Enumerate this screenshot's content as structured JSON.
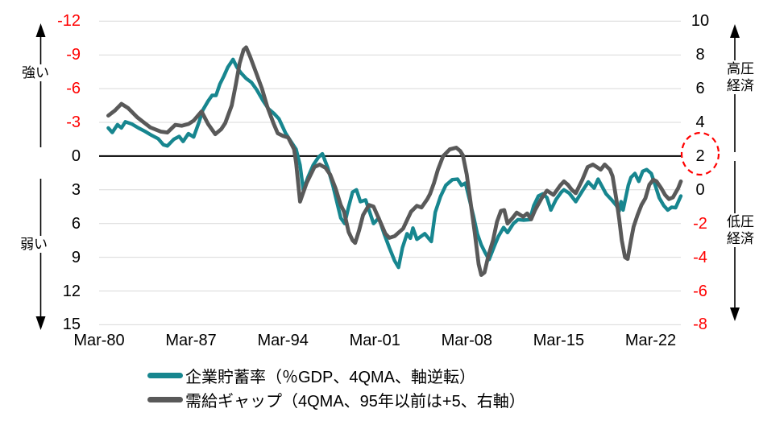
{
  "chart_data": {
    "type": "line",
    "title": "",
    "x_axis": {
      "tick_labels": [
        "Mar-80",
        "Mar-87",
        "Mar-94",
        "Mar-01",
        "Mar-08",
        "Mar-15",
        "Mar-22"
      ],
      "tick_years": [
        1980.2,
        1987.2,
        1994.2,
        2001.2,
        2008.2,
        2015.2,
        2022.2
      ],
      "range_years": [
        1980.2,
        2024.5
      ]
    },
    "left_axis": {
      "ticks": [
        -12,
        -9,
        -6,
        -3,
        0,
        3,
        6,
        9,
        12,
        15
      ],
      "range": [
        -12,
        15
      ],
      "inverted": true,
      "negative_color": "#FF0000",
      "base_color": "#000000"
    },
    "right_axis": {
      "ticks": [
        10,
        8,
        6,
        4,
        2,
        0,
        -2,
        -4,
        -6,
        -8
      ],
      "range": [
        10,
        -8
      ],
      "highlighted_tick": 2,
      "negative_color": "#FF0000",
      "base_color": "#000000"
    },
    "grid_color": "#D9D9D9",
    "zero_line_color": "#000000",
    "series": [
      {
        "name": "企業貯蓄率（％GDP、4QMA、軸逆転）",
        "color": "#17868F",
        "axis": "left",
        "stroke_width": 4.4,
        "points": [
          [
            1980.9,
            -2.5
          ],
          [
            1981.2,
            -2.1
          ],
          [
            1981.6,
            -2.8
          ],
          [
            1981.9,
            -2.5
          ],
          [
            1982.2,
            -3.05
          ],
          [
            1982.7,
            -2.85
          ],
          [
            1983.2,
            -2.5
          ],
          [
            1983.7,
            -2.2
          ],
          [
            1984.2,
            -1.85
          ],
          [
            1984.7,
            -1.55
          ],
          [
            1985.1,
            -1.0
          ],
          [
            1985.4,
            -0.9
          ],
          [
            1985.9,
            -1.5
          ],
          [
            1986.3,
            -1.75
          ],
          [
            1986.6,
            -1.3
          ],
          [
            1987.0,
            -2.0
          ],
          [
            1987.4,
            -1.7
          ],
          [
            1987.8,
            -3.0
          ],
          [
            1988.1,
            -4.1
          ],
          [
            1988.5,
            -4.9
          ],
          [
            1988.8,
            -5.4
          ],
          [
            1989.1,
            -5.4
          ],
          [
            1989.4,
            -6.4
          ],
          [
            1989.7,
            -7.1
          ],
          [
            1990.0,
            -7.9
          ],
          [
            1990.4,
            -8.6
          ],
          [
            1990.7,
            -7.9
          ],
          [
            1991.0,
            -7.4
          ],
          [
            1991.4,
            -6.9
          ],
          [
            1991.8,
            -6.55
          ],
          [
            1992.2,
            -5.9
          ],
          [
            1992.7,
            -4.9
          ],
          [
            1993.1,
            -4.2
          ],
          [
            1993.5,
            -3.8
          ],
          [
            1993.9,
            -3.3
          ],
          [
            1994.4,
            -2.05
          ],
          [
            1994.8,
            -1.3
          ],
          [
            1995.2,
            -0.6
          ],
          [
            1995.5,
            0.8
          ],
          [
            1995.75,
            3.0
          ],
          [
            1996.1,
            1.9
          ],
          [
            1996.5,
            0.8
          ],
          [
            1996.9,
            0.1
          ],
          [
            1997.2,
            -0.2
          ],
          [
            1997.6,
            1.0
          ],
          [
            1998.0,
            2.6
          ],
          [
            1998.6,
            5.5
          ],
          [
            1998.9,
            6.0
          ],
          [
            1999.2,
            4.5
          ],
          [
            1999.5,
            3.2
          ],
          [
            1999.8,
            3.0
          ],
          [
            2000.1,
            4.05
          ],
          [
            2000.5,
            3.9
          ],
          [
            2001.1,
            6.0
          ],
          [
            2001.5,
            5.5
          ],
          [
            2001.9,
            6.9
          ],
          [
            2002.3,
            8.15
          ],
          [
            2002.7,
            9.3
          ],
          [
            2003.0,
            9.9
          ],
          [
            2003.3,
            8.15
          ],
          [
            2003.65,
            6.9
          ],
          [
            2003.9,
            7.3
          ],
          [
            2004.1,
            6.4
          ],
          [
            2004.4,
            7.4
          ],
          [
            2005.0,
            6.9
          ],
          [
            2005.5,
            7.6
          ],
          [
            2005.8,
            5.0
          ],
          [
            2006.2,
            3.6
          ],
          [
            2006.6,
            2.6
          ],
          [
            2007.1,
            2.1
          ],
          [
            2007.5,
            2.05
          ],
          [
            2007.8,
            2.6
          ],
          [
            2008.1,
            2.4
          ],
          [
            2008.4,
            3.85
          ],
          [
            2008.7,
            5.3
          ],
          [
            2009.0,
            6.9
          ],
          [
            2009.3,
            7.9
          ],
          [
            2009.6,
            8.6
          ],
          [
            2009.9,
            9.2
          ],
          [
            2010.3,
            8.0
          ],
          [
            2010.6,
            7.15
          ],
          [
            2011.0,
            6.35
          ],
          [
            2011.3,
            6.8
          ],
          [
            2011.75,
            6.0
          ],
          [
            2012.1,
            5.65
          ],
          [
            2012.5,
            5.7
          ],
          [
            2013.0,
            5.65
          ],
          [
            2013.3,
            4.4
          ],
          [
            2013.65,
            3.55
          ],
          [
            2014.0,
            3.35
          ],
          [
            2014.3,
            3.7
          ],
          [
            2014.6,
            4.8
          ],
          [
            2015.0,
            3.85
          ],
          [
            2015.4,
            3.2
          ],
          [
            2015.6,
            3.0
          ],
          [
            2016.0,
            3.3
          ],
          [
            2016.5,
            4.05
          ],
          [
            2017.0,
            3.1
          ],
          [
            2017.45,
            2.3
          ],
          [
            2017.9,
            2.85
          ],
          [
            2018.2,
            2.05
          ],
          [
            2018.8,
            3.35
          ],
          [
            2019.2,
            3.85
          ],
          [
            2019.6,
            4.4
          ],
          [
            2019.8,
            4.9
          ],
          [
            2019.95,
            4.05
          ],
          [
            2020.1,
            4.8
          ],
          [
            2020.5,
            2.6
          ],
          [
            2020.7,
            1.9
          ],
          [
            2021.0,
            1.55
          ],
          [
            2021.3,
            2.25
          ],
          [
            2021.6,
            1.35
          ],
          [
            2021.9,
            1.2
          ],
          [
            2022.25,
            1.55
          ],
          [
            2022.55,
            2.6
          ],
          [
            2022.85,
            3.7
          ],
          [
            2023.2,
            4.4
          ],
          [
            2023.5,
            4.8
          ],
          [
            2023.8,
            4.55
          ],
          [
            2024.1,
            4.6
          ],
          [
            2024.5,
            3.55
          ]
        ]
      },
      {
        "name": "需給ギャップ（4QMA、95年以前は+5、右軸）",
        "color": "#595959",
        "axis": "right",
        "stroke_width": 4.8,
        "points": [
          [
            1980.9,
            4.4
          ],
          [
            1981.4,
            4.7
          ],
          [
            1981.9,
            5.1
          ],
          [
            1982.4,
            4.85
          ],
          [
            1983.1,
            4.3
          ],
          [
            1983.6,
            4.0
          ],
          [
            1984.1,
            3.7
          ],
          [
            1984.9,
            3.45
          ],
          [
            1985.4,
            3.4
          ],
          [
            1986.0,
            3.85
          ],
          [
            1986.5,
            3.8
          ],
          [
            1987.0,
            3.9
          ],
          [
            1987.4,
            4.1
          ],
          [
            1988.0,
            4.65
          ],
          [
            1988.5,
            3.9
          ],
          [
            1989.05,
            3.3
          ],
          [
            1989.5,
            3.6
          ],
          [
            1989.8,
            3.95
          ],
          [
            1990.3,
            5.0
          ],
          [
            1990.6,
            6.2
          ],
          [
            1990.9,
            7.5
          ],
          [
            1991.2,
            8.3
          ],
          [
            1991.4,
            8.45
          ],
          [
            1991.7,
            7.9
          ],
          [
            1992.2,
            6.85
          ],
          [
            1992.6,
            6.0
          ],
          [
            1993.0,
            4.95
          ],
          [
            1993.5,
            3.9
          ],
          [
            1993.8,
            3.35
          ],
          [
            1994.2,
            3.2
          ],
          [
            1994.6,
            3.1
          ],
          [
            1995.05,
            2.4
          ],
          [
            1995.2,
            1.6
          ],
          [
            1995.5,
            -0.7
          ],
          [
            1996.0,
            0.4
          ],
          [
            1996.6,
            1.35
          ],
          [
            1997.0,
            1.5
          ],
          [
            1997.45,
            1.3
          ],
          [
            1997.8,
            0.9
          ],
          [
            1998.2,
            0.1
          ],
          [
            1998.6,
            -0.9
          ],
          [
            1998.85,
            -1.3
          ],
          [
            1999.2,
            -2.5
          ],
          [
            1999.5,
            -3.0
          ],
          [
            1999.7,
            -3.15
          ],
          [
            2000.0,
            -2.4
          ],
          [
            2000.3,
            -1.5
          ],
          [
            2000.75,
            -0.9
          ],
          [
            2001.1,
            -1.0
          ],
          [
            2001.5,
            -1.7
          ],
          [
            2002.0,
            -2.6
          ],
          [
            2002.3,
            -2.85
          ],
          [
            2002.7,
            -2.75
          ],
          [
            2003.35,
            -2.3
          ],
          [
            2003.95,
            -1.3
          ],
          [
            2004.4,
            -0.95
          ],
          [
            2004.75,
            -1.05
          ],
          [
            2005.2,
            -0.55
          ],
          [
            2005.4,
            -0.25
          ],
          [
            2005.7,
            0.4
          ],
          [
            2006.0,
            1.2
          ],
          [
            2006.4,
            2.0
          ],
          [
            2006.9,
            2.4
          ],
          [
            2007.4,
            2.5
          ],
          [
            2007.7,
            2.3
          ],
          [
            2007.9,
            2.05
          ],
          [
            2008.2,
            0.9
          ],
          [
            2008.5,
            -0.8
          ],
          [
            2008.8,
            -2.5
          ],
          [
            2009.1,
            -4.4
          ],
          [
            2009.3,
            -5.05
          ],
          [
            2009.55,
            -4.9
          ],
          [
            2009.85,
            -3.9
          ],
          [
            2010.2,
            -3.0
          ],
          [
            2010.5,
            -1.9
          ],
          [
            2010.8,
            -1.25
          ],
          [
            2011.05,
            -1.2
          ],
          [
            2011.3,
            -2.0
          ],
          [
            2011.65,
            -1.7
          ],
          [
            2012.0,
            -1.35
          ],
          [
            2012.5,
            -1.6
          ],
          [
            2012.8,
            -1.4
          ],
          [
            2013.1,
            -1.75
          ],
          [
            2013.4,
            -1.2
          ],
          [
            2013.9,
            -0.5
          ],
          [
            2014.3,
            -0.05
          ],
          [
            2014.8,
            -0.3
          ],
          [
            2015.3,
            0.25
          ],
          [
            2015.6,
            0.5
          ],
          [
            2015.9,
            0.3
          ],
          [
            2016.2,
            0.0
          ],
          [
            2016.5,
            -0.2
          ],
          [
            2017.0,
            0.6
          ],
          [
            2017.4,
            1.35
          ],
          [
            2017.8,
            1.5
          ],
          [
            2018.1,
            1.35
          ],
          [
            2018.4,
            1.2
          ],
          [
            2018.7,
            1.5
          ],
          [
            2019.1,
            1.2
          ],
          [
            2019.3,
            0.8
          ],
          [
            2019.6,
            -0.6
          ],
          [
            2019.8,
            -1.7
          ],
          [
            2020.0,
            -3.0
          ],
          [
            2020.25,
            -4.0
          ],
          [
            2020.45,
            -4.1
          ],
          [
            2020.7,
            -3.0
          ],
          [
            2020.9,
            -2.2
          ],
          [
            2021.2,
            -1.5
          ],
          [
            2021.5,
            -0.9
          ],
          [
            2021.8,
            -0.5
          ],
          [
            2022.1,
            0.3
          ],
          [
            2022.4,
            0.6
          ],
          [
            2022.65,
            0.5
          ],
          [
            2023.0,
            0.1
          ],
          [
            2023.3,
            -0.3
          ],
          [
            2023.6,
            -0.55
          ],
          [
            2023.9,
            -0.45
          ],
          [
            2024.3,
            0.1
          ],
          [
            2024.5,
            0.5
          ]
        ]
      }
    ]
  },
  "annotations": {
    "left_top": "強い",
    "left_bottom": "弱い",
    "right_top": "高圧経済",
    "right_bottom": "低圧経済",
    "arrow_color": "#000000",
    "circle_color": "#FF0000"
  }
}
